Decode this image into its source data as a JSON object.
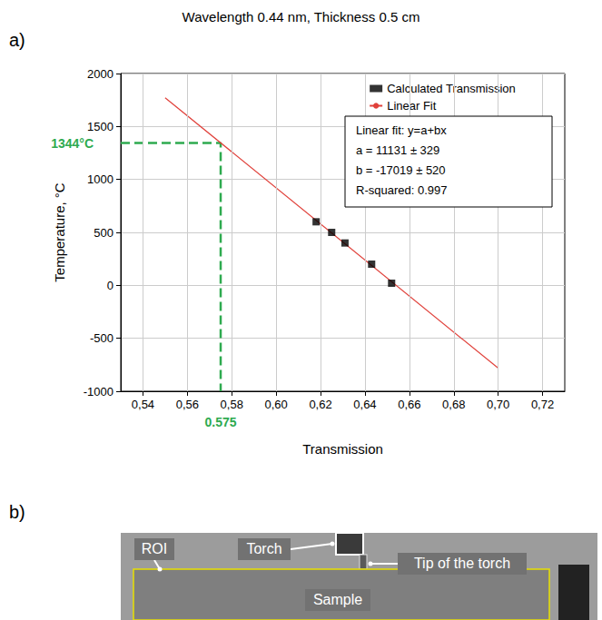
{
  "chart_data": {
    "type": "scatter",
    "title": "Wavelength 0.44 nm, Thickness 0.5 cm",
    "panel_label": "a)",
    "x_label": "Transmission",
    "y_label": "Temperature, °C",
    "xlim": [
      0.53,
      0.73
    ],
    "xticks": [
      {
        "value": 0.54,
        "label": "0,54"
      },
      {
        "value": 0.56,
        "label": "0,56"
      },
      {
        "value": 0.58,
        "label": "0,58"
      },
      {
        "value": 0.6,
        "label": "0,60"
      },
      {
        "value": 0.62,
        "label": "0,62"
      },
      {
        "value": 0.64,
        "label": "0,64"
      },
      {
        "value": 0.66,
        "label": "0,66"
      },
      {
        "value": 0.68,
        "label": "0,68"
      },
      {
        "value": 0.7,
        "label": "0,70"
      },
      {
        "value": 0.72,
        "label": "0,72"
      }
    ],
    "ylim": [
      -1000,
      2000
    ],
    "yticks": [
      -1000,
      -500,
      0,
      500,
      1000,
      1500,
      2000
    ],
    "grid": true,
    "legend": "top-right",
    "series": [
      {
        "name": "Calculated Transmission",
        "type": "scatter",
        "marker": "square",
        "color": "#000000",
        "x": [
          0.618,
          0.625,
          0.631,
          0.643,
          0.652
        ],
        "values": [
          600,
          500,
          400,
          200,
          20
        ]
      },
      {
        "name": "Linear Fit",
        "type": "line",
        "color": "#e0403a",
        "line_style": "solid",
        "x": [
          0.55,
          0.7
        ],
        "values": [
          1771,
          -782
        ]
      }
    ],
    "fit_box": [
      "Linear fit: y=a+bx",
      "a = 11131 ± 329",
      "b = -17019 ± 520",
      "R-squared: 0.997"
    ],
    "annotations": [
      {
        "axis": "y",
        "value": 1344,
        "label": "1344°C",
        "color": "#2eaa4f",
        "line_style": "dashed"
      },
      {
        "axis": "x",
        "value": 0.575,
        "label": "0.575",
        "color": "#2eaa4f",
        "line_style": "dashed"
      }
    ]
  },
  "panel_b": {
    "label": "b)",
    "annotations": [
      "ROI",
      "Torch",
      "Tip of the torch",
      "Sample"
    ]
  }
}
